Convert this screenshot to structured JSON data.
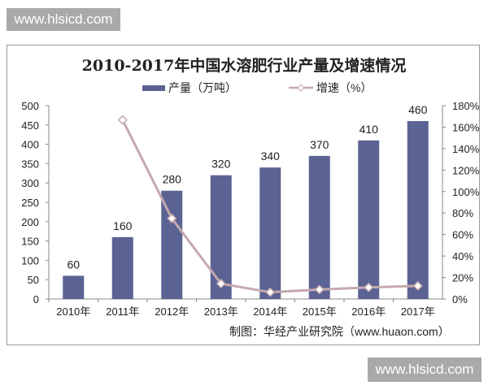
{
  "watermarks": {
    "top": "www.hlsicd.com",
    "bottom": "www.hlsicd.com"
  },
  "credit": "制图：华经产业研究院（www.huaon.com）",
  "colors": {
    "bar": "#5b6394",
    "line": "#c4a9ae"
  },
  "chart_data": {
    "type": "bar+line",
    "title": "2010-2017年中国水溶肥行业产量及增速情况",
    "categories": [
      "2010年",
      "2011年",
      "2012年",
      "2013年",
      "2014年",
      "2015年",
      "2016年",
      "2017年"
    ],
    "series": [
      {
        "name": "产量（万吨）",
        "type": "bar",
        "axis": "left",
        "values": [
          60,
          160,
          280,
          320,
          340,
          370,
          410,
          460
        ]
      },
      {
        "name": "增速（%）",
        "type": "line",
        "axis": "right",
        "values": [
          null,
          166.7,
          75,
          14.3,
          6.3,
          8.8,
          10.8,
          12.2
        ]
      }
    ],
    "y_left": {
      "range": [
        0,
        500
      ],
      "ticks": [
        "0",
        "50",
        "100",
        "150",
        "200",
        "250",
        "300",
        "350",
        "400",
        "450",
        "500"
      ]
    },
    "y_right": {
      "range": [
        0,
        180
      ],
      "ticks": [
        "0%",
        "20%",
        "40%",
        "60%",
        "80%",
        "100%",
        "120%",
        "140%",
        "160%",
        "180%"
      ]
    },
    "data_labels": [
      "60",
      "160",
      "280",
      "320",
      "340",
      "370",
      "410",
      "460"
    ],
    "legend": "top",
    "grid": false
  }
}
